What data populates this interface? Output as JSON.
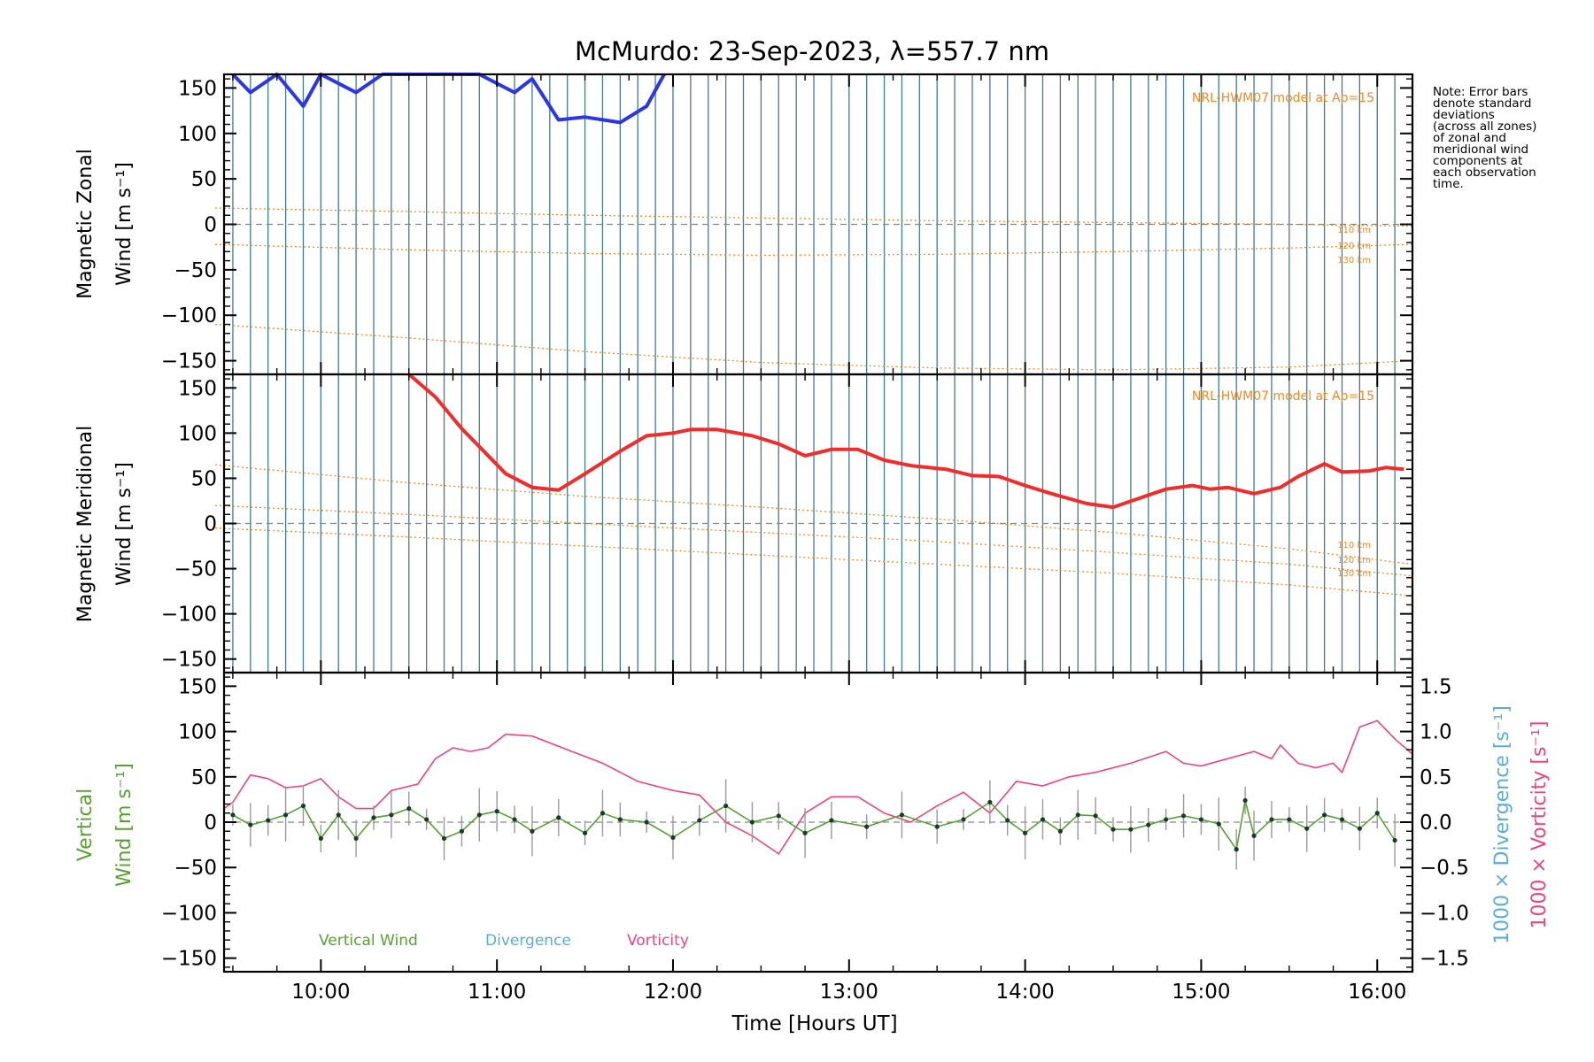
{
  "figure_title": "McMurdo: 23-Sep-2023, λ=557.7 nm",
  "note": [
    "Note: Error bars",
    "denote standard",
    "deviations",
    "(across all zones)",
    "of zonal and",
    "meridional wind",
    "components at",
    "each observation",
    "time."
  ],
  "colors": {
    "zonal": "#2b36e8",
    "meridional": "#f22b2b",
    "vertical": "#58a032",
    "divergence": "#5aaed6",
    "vorticity": "#f0447c",
    "model": "#f08a22",
    "zone_lines": "#2a6e84"
  },
  "chart_data": [
    {
      "type": "line",
      "title": "McMurdo: 23-Sep-2023, λ=557.7 nm",
      "ylabel_lines": [
        "Magnetic Zonal",
        "Wind [m s⁻¹]"
      ],
      "ylim": [
        -165,
        165
      ],
      "yticks": [
        "150",
        "100",
        "50",
        "0",
        "−50",
        "−100",
        "−150"
      ],
      "model_label": "NRL-HWM07 model at Ap=15",
      "model_altitudes": [
        "110 km",
        "120 km",
        "130 km"
      ],
      "series": [
        {
          "name": "Zonal wind",
          "x": [
            9.5,
            9.6,
            9.75,
            9.9,
            10.0,
            10.2,
            10.35,
            10.5,
            10.7,
            10.9,
            11.1,
            11.2,
            11.35,
            11.5,
            11.7,
            11.85,
            11.95
          ],
          "values": [
            170,
            145,
            170,
            130,
            170,
            145,
            170,
            170,
            170,
            170,
            145,
            160,
            115,
            118,
            112,
            130,
            170
          ]
        },
        {
          "name": "HWM07 110 km",
          "x": [
            9.4,
            10.5,
            11.5,
            12.5,
            13.5,
            14.5,
            15.5,
            16.2
          ],
          "values": [
            18,
            14,
            10,
            7,
            4,
            2,
            0,
            -2
          ]
        },
        {
          "name": "HWM07 120 km",
          "x": [
            9.4,
            10.5,
            11.5,
            12.5,
            13.5,
            14.5,
            15.5,
            16.2
          ],
          "values": [
            -22,
            -28,
            -32,
            -34,
            -33,
            -30,
            -26,
            -22
          ]
        },
        {
          "name": "HWM07 130 km",
          "x": [
            9.4,
            10.5,
            11.5,
            12.5,
            13.5,
            14.5,
            15.5,
            16.2
          ],
          "values": [
            -110,
            -125,
            -140,
            -152,
            -158,
            -160,
            -157,
            -150
          ]
        }
      ]
    },
    {
      "type": "line",
      "ylabel_lines": [
        "Magnetic Meridional",
        "Wind [m s⁻¹]"
      ],
      "ylim": [
        -165,
        165
      ],
      "yticks": [
        "150",
        "100",
        "50",
        "0",
        "−50",
        "−100",
        "−150"
      ],
      "model_label": "NRL-HWM07 model at Ap=15",
      "model_altitudes": [
        "110 km",
        "120 km",
        "130 km"
      ],
      "series": [
        {
          "name": "Meridional wind",
          "x": [
            10.5,
            10.65,
            10.8,
            11.05,
            11.2,
            11.35,
            11.5,
            11.7,
            11.85,
            12.0,
            12.1,
            12.25,
            12.45,
            12.6,
            12.75,
            12.9,
            13.05,
            13.2,
            13.35,
            13.55,
            13.7,
            13.85,
            14.0,
            14.15,
            14.35,
            14.5,
            14.65,
            14.8,
            14.95,
            15.05,
            15.15,
            15.3,
            15.45,
            15.55,
            15.7,
            15.8,
            15.95,
            16.05,
            16.15
          ],
          "values": [
            165,
            140,
            105,
            55,
            40,
            37,
            55,
            80,
            97,
            100,
            104,
            104,
            97,
            88,
            75,
            82,
            82,
            70,
            64,
            60,
            53,
            52,
            42,
            33,
            22,
            18,
            28,
            38,
            42,
            38,
            40,
            33,
            40,
            52,
            66,
            57,
            58,
            62,
            60
          ]
        },
        {
          "name": "HWM07 110 km",
          "x": [
            9.4,
            10.5,
            11.5,
            12.5,
            13.5,
            14.5,
            15.5,
            16.2
          ],
          "values": [
            65,
            45,
            30,
            18,
            5,
            -10,
            -28,
            -45
          ]
        },
        {
          "name": "HWM07 120 km",
          "x": [
            9.4,
            10.5,
            11.5,
            12.5,
            13.5,
            14.5,
            15.5,
            16.2
          ],
          "values": [
            20,
            10,
            0,
            -10,
            -20,
            -32,
            -45,
            -58
          ]
        },
        {
          "name": "HWM07 130 km",
          "x": [
            9.4,
            10.5,
            11.5,
            12.5,
            13.5,
            14.5,
            15.5,
            16.2
          ],
          "values": [
            -5,
            -15,
            -25,
            -35,
            -45,
            -55,
            -68,
            -80
          ]
        }
      ]
    },
    {
      "type": "line",
      "ylabel_lines": [
        "Vertical",
        "Wind [m s⁻¹]"
      ],
      "ylim": [
        -165,
        165
      ],
      "yticks": [
        "150",
        "100",
        "50",
        "0",
        "−50",
        "−100",
        "−150"
      ],
      "y2_label_lines": [
        "1000 × Divergence [s⁻¹]",
        "1000 × Vorticity [s⁻¹]"
      ],
      "y2lim": [
        -1.65,
        1.65
      ],
      "y2ticks": [
        "1.5",
        "1.0",
        "0.5",
        "0.0",
        "−0.5",
        "−1.0",
        "−1.5"
      ],
      "xlabel": "Time [Hours UT]",
      "xticks": [
        "10:00",
        "11:00",
        "12:00",
        "13:00",
        "14:00",
        "15:00",
        "16:00"
      ],
      "xlim": [
        9.45,
        16.2
      ],
      "legend": [
        "Vertical Wind",
        "Divergence",
        "Vorticity"
      ],
      "series": [
        {
          "name": "Vertical Wind",
          "x": [
            9.5,
            9.6,
            9.7,
            9.8,
            9.9,
            10.0,
            10.1,
            10.2,
            10.3,
            10.4,
            10.5,
            10.6,
            10.7,
            10.8,
            10.9,
            11.0,
            11.1,
            11.2,
            11.35,
            11.5,
            11.6,
            11.7,
            11.85,
            12.0,
            12.15,
            12.3,
            12.45,
            12.6,
            12.75,
            12.9,
            13.1,
            13.3,
            13.5,
            13.65,
            13.8,
            13.9,
            14.0,
            14.1,
            14.2,
            14.3,
            14.4,
            14.5,
            14.6,
            14.7,
            14.8,
            14.9,
            15.0,
            15.1,
            15.2,
            15.25,
            15.3,
            15.4,
            15.5,
            15.6,
            15.7,
            15.8,
            15.9,
            16.0,
            16.1
          ],
          "values": [
            8,
            -3,
            2,
            8,
            18,
            -18,
            8,
            -18,
            5,
            8,
            15,
            3,
            -18,
            -10,
            8,
            12,
            3,
            -10,
            5,
            -12,
            10,
            3,
            0,
            -17,
            2,
            18,
            0,
            7,
            -12,
            2,
            -5,
            8,
            -5,
            3,
            22,
            2,
            -12,
            3,
            -10,
            8,
            7,
            -8,
            -8,
            -3,
            3,
            7,
            3,
            -2,
            -30,
            24,
            -15,
            3,
            3,
            -7,
            8,
            3,
            -7,
            10,
            -20
          ]
        },
        {
          "name": "Vorticity",
          "x": [
            9.45,
            9.5,
            9.6,
            9.7,
            9.8,
            9.9,
            10.0,
            10.1,
            10.2,
            10.3,
            10.4,
            10.55,
            10.65,
            10.75,
            10.85,
            10.95,
            11.05,
            11.2,
            11.4,
            11.6,
            11.8,
            12.0,
            12.15,
            12.3,
            12.45,
            12.6,
            12.75,
            12.9,
            13.05,
            13.2,
            13.35,
            13.5,
            13.65,
            13.8,
            13.95,
            14.1,
            14.25,
            14.4,
            14.6,
            14.8,
            14.9,
            15.0,
            15.15,
            15.3,
            15.4,
            15.45,
            15.55,
            15.65,
            15.75,
            15.8,
            15.9,
            16.0,
            16.1,
            16.2
          ],
          "values": [
            0.15,
            0.22,
            0.52,
            0.48,
            0.38,
            0.4,
            0.48,
            0.28,
            0.15,
            0.15,
            0.35,
            0.42,
            0.7,
            0.82,
            0.78,
            0.82,
            0.97,
            0.95,
            0.8,
            0.65,
            0.45,
            0.35,
            0.3,
            0.0,
            -0.15,
            -0.35,
            0.1,
            0.28,
            0.28,
            0.1,
            0.0,
            0.18,
            0.33,
            0.1,
            0.45,
            0.4,
            0.5,
            0.55,
            0.65,
            0.78,
            0.65,
            0.62,
            0.7,
            0.78,
            0.7,
            0.85,
            0.65,
            0.6,
            0.65,
            0.55,
            1.05,
            1.12,
            0.92,
            0.75
          ]
        }
      ]
    }
  ]
}
